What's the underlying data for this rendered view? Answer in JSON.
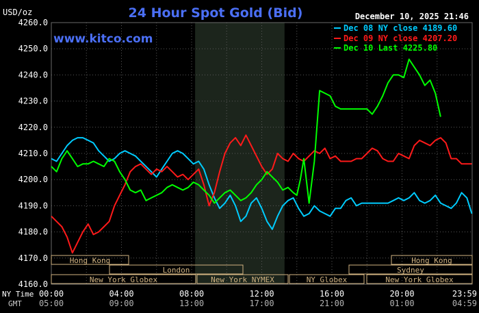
{
  "header": {
    "unit": "USD/oz",
    "title": "24 Hour Spot Gold (Bid)",
    "date": "December 10, 2025 21:46",
    "watermark": "www.kitco.com"
  },
  "legend": {
    "items": [
      {
        "label": "Dec 08 NY close 4189.60",
        "color": "#00ccff"
      },
      {
        "label": "Dec 09 NY close 4207.20",
        "color": "#ff1a1a"
      },
      {
        "label": "Dec 10 Last 4225.80",
        "color": "#00ff00"
      }
    ]
  },
  "timezones": {
    "ny_label": "NY Time",
    "gmt_label": "GMT"
  },
  "sessions": [
    {
      "label": "Hong Kong",
      "row": 0
    },
    {
      "label": "Hong Kong",
      "row": 0
    },
    {
      "label": "London",
      "row": 1
    },
    {
      "label": "Sydney",
      "row": 1
    },
    {
      "label": "New York Globex",
      "row": 2
    },
    {
      "label": "New York NYMEX",
      "row": 2
    },
    {
      "label": "NY Globex",
      "row": 2
    },
    {
      "label": "New York Globex",
      "row": 2
    }
  ],
  "colors": {
    "background": "#000000",
    "grid": "#5a5a5a",
    "title": "#4b6ff5",
    "text": "#ffffff",
    "session_box": "#d2b482",
    "watermark": "#4b6ff5",
    "shaded_region": "#1c251c"
  },
  "chart_data": {
    "type": "line",
    "title": "24 Hour Spot Gold (Bid)",
    "ylabel": "USD/oz",
    "ylim": [
      4160,
      4260
    ],
    "yticks": [
      "4160.0",
      "4170.0",
      "4180.0",
      "4190.0",
      "4200.0",
      "4210.0",
      "4220.0",
      "4230.0",
      "4240.0",
      "4250.0",
      "4260.0"
    ],
    "xlim": [
      0,
      24
    ],
    "xticks_ny": [
      "00:00",
      "04:00",
      "08:00",
      "12:00",
      "16:00",
      "20:00",
      "23:59"
    ],
    "xticks_gmt": [
      "05:00",
      "09:00",
      "13:00",
      "17:00",
      "21:00",
      "01:00",
      "04:59"
    ],
    "shaded_hours": [
      8.2,
      13.3
    ],
    "series": [
      {
        "name": "Dec 08 NY close 4189.60",
        "color": "#00ccff",
        "x": [
          0,
          0.3,
          0.6,
          0.9,
          1.2,
          1.5,
          1.8,
          2.1,
          2.4,
          2.7,
          3,
          3.3,
          3.6,
          3.9,
          4.2,
          4.5,
          4.8,
          5.1,
          5.4,
          5.7,
          6,
          6.3,
          6.6,
          6.9,
          7.2,
          7.5,
          7.8,
          8.1,
          8.4,
          8.7,
          9,
          9.3,
          9.6,
          9.9,
          10.2,
          10.5,
          10.8,
          11.1,
          11.4,
          11.7,
          12,
          12.3,
          12.6,
          12.9,
          13.2,
          13.5,
          13.8,
          14.1,
          14.4,
          14.7,
          15,
          15.3,
          15.6,
          15.9,
          16.2,
          16.5,
          16.8,
          17.1,
          17.4,
          17.7,
          18,
          18.3,
          18.6,
          18.9,
          19.2,
          19.5,
          19.8,
          20.1,
          20.4,
          20.7,
          21,
          21.3,
          21.6,
          21.9,
          22.2,
          22.5,
          22.8,
          23.1,
          23.4,
          23.7,
          23.98
        ],
        "values": [
          4208,
          4207,
          4210,
          4213,
          4215,
          4216,
          4216,
          4215,
          4214,
          4211,
          4209,
          4207,
          4208,
          4210,
          4211,
          4210,
          4209,
          4207,
          4205,
          4203,
          4201,
          4204,
          4207,
          4210,
          4211,
          4210,
          4208,
          4206,
          4207,
          4204,
          4198,
          4193,
          4189,
          4191,
          4194,
          4190,
          4184,
          4186,
          4191,
          4193,
          4189,
          4184,
          4181,
          4186,
          4190,
          4192,
          4193,
          4189,
          4186,
          4187,
          4190,
          4188,
          4187,
          4186,
          4189,
          4189,
          4192,
          4193,
          4190,
          4191,
          4191,
          4191,
          4191,
          4191,
          4191,
          4192,
          4193,
          4192,
          4193,
          4195,
          4192,
          4191,
          4192,
          4194,
          4191,
          4190,
          4189,
          4191,
          4195,
          4193,
          4187
        ]
      },
      {
        "name": "Dec 09 NY close 4207.20",
        "color": "#ff1a1a",
        "x": [
          0,
          0.3,
          0.6,
          0.9,
          1.2,
          1.5,
          1.8,
          2.1,
          2.4,
          2.7,
          3,
          3.3,
          3.6,
          3.9,
          4.2,
          4.5,
          4.8,
          5.1,
          5.4,
          5.7,
          6,
          6.3,
          6.6,
          6.9,
          7.2,
          7.5,
          7.8,
          8.1,
          8.4,
          8.7,
          9,
          9.3,
          9.6,
          9.9,
          10.2,
          10.5,
          10.8,
          11.1,
          11.4,
          11.7,
          12,
          12.3,
          12.6,
          12.9,
          13.2,
          13.5,
          13.8,
          14.1,
          14.4,
          14.7,
          15,
          15.3,
          15.6,
          15.9,
          16.2,
          16.5,
          16.8,
          17.1,
          17.4,
          17.7,
          18,
          18.3,
          18.6,
          18.9,
          19.2,
          19.5,
          19.8,
          20.1,
          20.4,
          20.7,
          21,
          21.3,
          21.6,
          21.9,
          22.2,
          22.5,
          22.8,
          23.1,
          23.4,
          23.7,
          23.98
        ],
        "values": [
          4186,
          4184,
          4182,
          4178,
          4172,
          4176,
          4180,
          4183,
          4179,
          4180,
          4182,
          4184,
          4190,
          4194,
          4198,
          4203,
          4205,
          4206,
          4204,
          4202,
          4204,
          4203,
          4205,
          4203,
          4201,
          4202,
          4200,
          4202,
          4204,
          4198,
          4190,
          4195,
          4203,
          4210,
          4214,
          4216,
          4213,
          4217,
          4213,
          4209,
          4205,
          4202,
          4204,
          4210,
          4208,
          4207,
          4210,
          4208,
          4207,
          4209,
          4211,
          4210,
          4212,
          4208,
          4209,
          4207,
          4207,
          4207,
          4208,
          4208,
          4210,
          4212,
          4211,
          4208,
          4207,
          4207,
          4210,
          4209,
          4208,
          4213,
          4215,
          4214,
          4213,
          4215,
          4216,
          4214,
          4208,
          4208,
          4206,
          4206,
          4206
        ]
      },
      {
        "name": "Dec 10 Last 4225.80",
        "color": "#00ff00",
        "x": [
          0,
          0.3,
          0.6,
          0.9,
          1.2,
          1.5,
          1.8,
          2.1,
          2.4,
          2.7,
          3,
          3.3,
          3.6,
          3.9,
          4.2,
          4.5,
          4.8,
          5.1,
          5.4,
          5.7,
          6,
          6.3,
          6.6,
          6.9,
          7.2,
          7.5,
          7.8,
          8.1,
          8.4,
          8.7,
          9,
          9.3,
          9.6,
          9.9,
          10.2,
          10.5,
          10.8,
          11.1,
          11.4,
          11.7,
          12,
          12.3,
          12.6,
          12.9,
          13.2,
          13.5,
          13.8,
          14.0,
          14.2,
          14.4,
          14.7,
          15,
          15.3,
          15.6,
          15.9,
          16.2,
          16.5,
          16.8,
          17.1,
          17.4,
          17.7,
          18,
          18.3,
          18.6,
          18.9,
          19.2,
          19.5,
          19.8,
          20.1,
          20.4,
          20.7,
          21,
          21.3,
          21.6,
          21.9,
          22.2
        ],
        "values": [
          4205,
          4203,
          4208,
          4211,
          4208,
          4205,
          4206,
          4206,
          4207,
          4206,
          4205,
          4208,
          4207,
          4203,
          4200,
          4196,
          4195,
          4196,
          4192,
          4193,
          4194,
          4195,
          4197,
          4198,
          4197,
          4196,
          4197,
          4199,
          4198,
          4196,
          4194,
          4191,
          4193,
          4195,
          4196,
          4194,
          4192,
          4193,
          4195,
          4198,
          4200,
          4203,
          4201,
          4199,
          4196,
          4197,
          4195,
          4194,
          4200,
          4208,
          4191,
          4207,
          4234,
          4233,
          4232,
          4228,
          4227,
          4227,
          4227,
          4227,
          4227,
          4227,
          4225,
          4228,
          4232,
          4237,
          4240,
          4240,
          4239,
          4246,
          4243,
          4240,
          4236,
          4238,
          4233,
          4224
        ]
      }
    ]
  }
}
